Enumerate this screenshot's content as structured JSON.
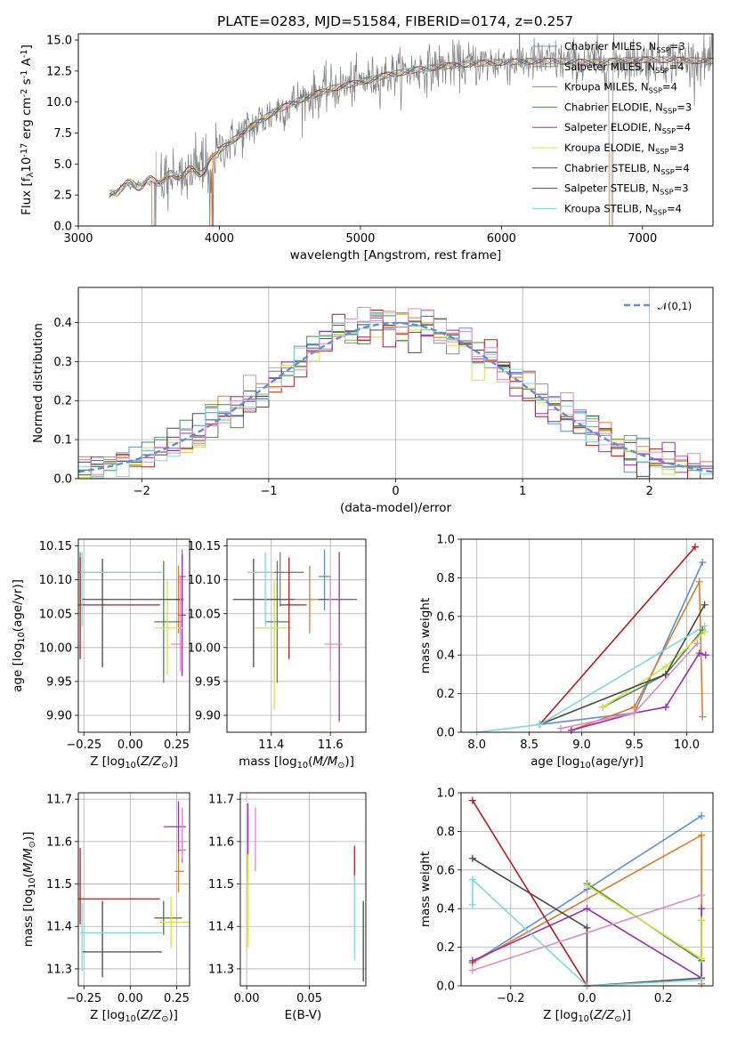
{
  "figure_title": "PLATE=0283, MJD=51584, FIBERID=0174, z=0.257",
  "chart_data": [
    {
      "type": "line",
      "panel": "spectrum",
      "xlabel": "wavelength [Angstrom, rest frame]",
      "ylabel": "Flux [f$_\\lambda$10$^{-17}$ erg cm$^{-2}$ s$^{-1}$ A$^{-1}$]",
      "xlim": [
        3000,
        7500
      ],
      "ylim": [
        0,
        15.5
      ],
      "xticks": [
        "3000",
        "4000",
        "5000",
        "6000",
        "7000"
      ],
      "yticks": [
        "0.0",
        "2.5",
        "5.0",
        "7.5",
        "10.0",
        "12.5",
        "15.0"
      ],
      "data_wavelength_range": [
        3220,
        7500
      ],
      "continuum_x": [
        3220,
        3300,
        3500,
        3700,
        3900,
        4000,
        4200,
        4400,
        4600,
        4800,
        5000,
        5200,
        5400,
        5600,
        5800,
        6000,
        6200,
        6400,
        6600,
        6800,
        7000,
        7200,
        7500
      ],
      "continuum_y": [
        2.3,
        3.2,
        3.5,
        4.1,
        4.6,
        6.1,
        7.8,
        9.3,
        10.3,
        11.1,
        11.6,
        12.2,
        12.6,
        12.9,
        13.1,
        13.2,
        13.3,
        13.3,
        13.2,
        13.3,
        13.4,
        13.4,
        13.3
      ],
      "legend": [
        {
          "label": "Chabrier MILES, N$_{SSP}$=3",
          "color": "#5b8fd9"
        },
        {
          "label": "Salpeter MILES, N$_{SSP}$=4",
          "color": "#808080"
        },
        {
          "label": "Kroupa MILES, N$_{SSP}$=4",
          "color": "#e07b28"
        },
        {
          "label": "Chabrier ELODIE, N$_{SSP}$=3",
          "color": "#4a8a4a"
        },
        {
          "label": "Salpeter ELODIE, N$_{SSP}$=4",
          "color": "#9a2fb5"
        },
        {
          "label": "Kroupa ELODIE, N$_{SSP}$=3",
          "color": "#d8e040"
        },
        {
          "label": "Chabrier STELIB, N$_{SSP}$=4",
          "color": "#4a4a4a"
        },
        {
          "label": "Salpeter STELIB, N$_{SSP}$=3",
          "color": "#b51e1e"
        },
        {
          "label": "Kroupa STELIB, N$_{SSP}$=4",
          "color": "#7fd8e0"
        }
      ],
      "legend_placement": "right"
    },
    {
      "type": "step-histogram",
      "panel": "residuals",
      "xlabel": "(data-model)/error",
      "ylabel": "Normed distribution",
      "xlim": [
        -2.5,
        2.5
      ],
      "ylim": [
        0,
        0.49
      ],
      "xticks": [
        "−2",
        "−1",
        "0",
        "1",
        "2"
      ],
      "yticks": [
        "0.0",
        "0.1",
        "0.2",
        "0.3",
        "0.4"
      ],
      "bin_width": 0.1,
      "reference_curve": {
        "label": "$\\mathcal{N}(0,1)$",
        "color": "#5b8fd9",
        "style": "dashed"
      },
      "grid": true,
      "legend_placement": "top-right"
    },
    {
      "type": "errorbar",
      "panel": "age-vs-Z",
      "xlabel": "Z [log$_{10}$($Z/Z_\\odot$)]",
      "ylabel": "age  [log$_{10}$($age/yr$)]",
      "xlim": [
        -0.28,
        0.32
      ],
      "ylim": [
        9.875,
        10.16
      ],
      "xticks": [
        "−0.25",
        "0.00",
        "0.25"
      ],
      "yticks": [
        "9.90",
        "9.95",
        "10.00",
        "10.05",
        "10.10",
        "10.15"
      ],
      "points": [
        {
          "x": 0.28,
          "y": 10.105,
          "xerr": [
            0.02,
            0.02
          ],
          "yerr": [
            0.05,
            0.04
          ],
          "color": "#5b8fd9"
        },
        {
          "x": -0.27,
          "y": 10.111,
          "xerr": [
            0.01,
            0.26
          ],
          "yerr": [
            0.05,
            0.03
          ],
          "color": "#808080"
        },
        {
          "x": 0.26,
          "y": 10.071,
          "xerr": [
            0.02,
            0.03
          ],
          "yerr": [
            0.05,
            0.05
          ],
          "color": "#e07b28"
        },
        {
          "x": 0.18,
          "y": 10.038,
          "xerr": [
            0.05,
            0.1
          ],
          "yerr": [
            0.09,
            0.09
          ],
          "color": "#4a8a4a"
        },
        {
          "x": 0.28,
          "y": 10.048,
          "xerr": [
            0.02,
            0.02
          ],
          "yerr": [
            0.09,
            0.09
          ],
          "color": "#9a2fb5"
        },
        {
          "x": 0.2,
          "y": 10.029,
          "xerr": [
            0.07,
            0.09
          ],
          "yerr": [
            0.07,
            0.07
          ],
          "color": "#d8e040"
        },
        {
          "x": -0.15,
          "y": 10.071,
          "xerr": [
            0.11,
            0.43
          ],
          "yerr": [
            0.1,
            0.06
          ],
          "color": "#4a4a4a"
        },
        {
          "x": -0.27,
          "y": 10.063,
          "xerr": [
            0.01,
            0.43
          ],
          "yerr": [
            0.08,
            0.07
          ],
          "color": "#b51e1e"
        },
        {
          "x": -0.26,
          "y": 10.111,
          "xerr": [
            0.01,
            0.43
          ],
          "yerr": [
            0.08,
            0.03
          ],
          "color": "#7fd8e0"
        },
        {
          "x": 0.27,
          "y": 10.005,
          "xerr": [
            0.05,
            0.02
          ],
          "yerr": [
            0.04,
            0.1
          ],
          "color": "#e58ac0"
        }
      ],
      "grid": true
    },
    {
      "type": "errorbar",
      "panel": "age-vs-mass",
      "xlabel": "mass [log$_{10}$($M/M_\\odot$)]",
      "ylabel": "",
      "xlim": [
        11.25,
        11.72
      ],
      "ylim": [
        9.875,
        10.16
      ],
      "xticks": [
        "11.4",
        "11.6"
      ],
      "yticks": [
        "9.90",
        "9.95",
        "10.00",
        "10.05",
        "10.10",
        "10.15"
      ],
      "points": [
        {
          "x": 11.58,
          "y": 10.105,
          "xerr": [
            0.02,
            0.02
          ],
          "yerr": [
            0.05,
            0.04
          ],
          "color": "#5b8fd9"
        },
        {
          "x": 11.43,
          "y": 10.111,
          "xerr": [
            0.08,
            0.08
          ],
          "yerr": [
            0.05,
            0.03
          ],
          "color": "#808080"
        },
        {
          "x": 11.53,
          "y": 10.071,
          "xerr": [
            0.05,
            0.05
          ],
          "yerr": [
            0.05,
            0.05
          ],
          "color": "#e07b28"
        },
        {
          "x": 11.42,
          "y": 10.038,
          "xerr": [
            0.04,
            0.04
          ],
          "yerr": [
            0.09,
            0.09
          ],
          "color": "#4a8a4a"
        },
        {
          "x": 11.63,
          "y": 10.071,
          "xerr": [
            0.07,
            0.06
          ],
          "yerr": [
            0.18,
            0.07
          ],
          "color": "#9a2fb5"
        },
        {
          "x": 11.41,
          "y": 10.029,
          "xerr": [
            0.07,
            0.06
          ],
          "yerr": [
            0.12,
            0.07
          ],
          "color": "#d8e040"
        },
        {
          "x": 11.34,
          "y": 10.071,
          "xerr": [
            0.07,
            0.14
          ],
          "yerr": [
            0.1,
            0.06
          ],
          "color": "#4a4a4a"
        },
        {
          "x": 11.46,
          "y": 10.063,
          "xerr": [
            0.03,
            0.06
          ],
          "yerr": [
            0.08,
            0.07
          ],
          "color": "#b51e1e"
        },
        {
          "x": 11.38,
          "y": 10.111,
          "xerr": [
            0.06,
            0.03
          ],
          "yerr": [
            0.08,
            0.03
          ],
          "color": "#7fd8e0"
        },
        {
          "x": 11.6,
          "y": 10.005,
          "xerr": [
            0.02,
            0.04
          ],
          "yerr": [
            0.04,
            0.1
          ],
          "color": "#e58ac0"
        }
      ],
      "grid": true
    },
    {
      "type": "line",
      "panel": "mass-weight-vs-age",
      "xlabel": "age  [log$_{10}$($age/yr$)]",
      "ylabel": "mass weight",
      "xlim": [
        7.85,
        10.25
      ],
      "ylim": [
        0,
        1.0
      ],
      "xticks": [
        "8.0",
        "8.5",
        "9.0",
        "9.5",
        "10.0"
      ],
      "yticks": [
        "0.0",
        "0.2",
        "0.4",
        "0.6",
        "0.8",
        "1.0"
      ],
      "series": [
        {
          "color": "#5b8fd9",
          "x": [
            8.6,
            9.5,
            10.15
          ],
          "y": [
            0.04,
            0.1,
            0.88
          ]
        },
        {
          "color": "#e07b28",
          "x": [
            8.9,
            9.5,
            10.12,
            10.15
          ],
          "y": [
            0.01,
            0.13,
            0.78,
            0.08
          ]
        },
        {
          "color": "#4a8a4a",
          "x": [
            9.2,
            9.8,
            10.15
          ],
          "y": [
            0.13,
            0.3,
            0.53
          ]
        },
        {
          "color": "#9a2fb5",
          "x": [
            8.9,
            9.5,
            9.8,
            10.12,
            10.18
          ],
          "y": [
            0.01,
            0.1,
            0.13,
            0.41,
            0.4
          ]
        },
        {
          "color": "#d8e040",
          "x": [
            9.2,
            9.8,
            10.17
          ],
          "y": [
            0.13,
            0.34,
            0.52
          ]
        },
        {
          "color": "#4a4a4a",
          "x": [
            8.6,
            9.8,
            10.17
          ],
          "y": [
            0.04,
            0.3,
            0.66
          ]
        },
        {
          "color": "#b51e1e",
          "x": [
            8.6,
            10.08
          ],
          "y": [
            0.04,
            0.96
          ]
        },
        {
          "color": "#7fd8e0",
          "x": [
            8.0,
            8.6,
            10.17
          ],
          "y": [
            0.0,
            0.04,
            0.55
          ]
        },
        {
          "color": "#e58ac0",
          "x": [
            8.8,
            9.5,
            10.1
          ],
          "y": [
            0.02,
            0.1,
            0.46
          ]
        }
      ],
      "grid": true
    },
    {
      "type": "errorbar",
      "panel": "mass-vs-Z",
      "xlabel": "Z [log$_{10}$($Z/Z_\\odot$)]",
      "ylabel": "mass [log$_{10}$($M/M_\\odot$)]",
      "xlim": [
        -0.28,
        0.32
      ],
      "ylim": [
        11.26,
        11.715
      ],
      "xticks": [
        "−0.25",
        "0.00",
        "0.25"
      ],
      "yticks": [
        "11.3",
        "11.4",
        "11.5",
        "11.6",
        "11.7"
      ],
      "points": [
        {
          "x": 0.28,
          "y": 11.58,
          "xerr": [
            0.02,
            0.02
          ],
          "yerr": [
            0.03,
            0.03
          ],
          "color": "#5b8fd9"
        },
        {
          "x": 0.18,
          "y": 11.42,
          "xerr": [
            0.04,
            0.09
          ],
          "yerr": [
            0.04,
            0.04
          ],
          "color": "#808080"
        },
        {
          "x": 0.26,
          "y": 11.53,
          "xerr": [
            0.02,
            0.03
          ],
          "yerr": [
            0.05,
            0.05
          ],
          "color": "#e07b28"
        },
        {
          "x": 0.18,
          "y": 11.42,
          "xerr": [
            0.05,
            0.1
          ],
          "yerr": [
            0.04,
            0.04
          ],
          "color": "#4a8a4a"
        },
        {
          "x": 0.26,
          "y": 11.635,
          "xerr": [
            0.08,
            0.04
          ],
          "yerr": [
            0.06,
            0.06
          ],
          "color": "#9a2fb5"
        },
        {
          "x": 0.22,
          "y": 11.41,
          "xerr": [
            0.06,
            0.1
          ],
          "yerr": [
            0.06,
            0.06
          ],
          "color": "#d8e040"
        },
        {
          "x": -0.15,
          "y": 11.34,
          "xerr": [
            0.11,
            0.32
          ],
          "yerr": [
            0.06,
            0.12
          ],
          "color": "#4a4a4a"
        },
        {
          "x": -0.27,
          "y": 11.465,
          "xerr": [
            0.01,
            0.43
          ],
          "yerr": [
            0.06,
            0.12
          ],
          "color": "#b51e1e"
        },
        {
          "x": -0.26,
          "y": 11.385,
          "xerr": [
            0.01,
            0.43
          ],
          "yerr": [
            0.09,
            0.07
          ],
          "color": "#7fd8e0"
        },
        {
          "x": 0.28,
          "y": 11.6,
          "xerr": [
            0.02,
            0.02
          ],
          "yerr": [
            0.04,
            0.08
          ],
          "color": "#e58ac0"
        }
      ],
      "grid": true
    },
    {
      "type": "errorbar",
      "panel": "mass-vs-EBV",
      "xlabel": "E(B-V)",
      "ylabel": "",
      "xlim": [
        -0.005,
        0.095
      ],
      "ylim": [
        11.26,
        11.715
      ],
      "xticks": [
        "0.00",
        "0.05"
      ],
      "yticks": [
        "11.3",
        "11.4",
        "11.5",
        "11.6",
        "11.7"
      ],
      "points": [
        {
          "x": 0.001,
          "y": 11.6,
          "yerr": [
            0.09,
            0.09
          ],
          "color": "#9a2fb5"
        },
        {
          "x": 0.001,
          "y": 11.47,
          "yerr": [
            0.12,
            0.1
          ],
          "color": "#d8e040"
        },
        {
          "x": 0.007,
          "y": 11.58,
          "yerr": [
            0.05,
            0.1
          ],
          "color": "#e58ac0"
        },
        {
          "x": 0.086,
          "y": 11.55,
          "yerr": [
            0.04,
            0.04
          ],
          "color": "#b51e1e"
        },
        {
          "x": 0.086,
          "y": 11.42,
          "yerr": [
            0.1,
            0.1
          ],
          "color": "#7fd8e0"
        },
        {
          "x": 0.093,
          "y": 11.37,
          "yerr": [
            0.1,
            0.09
          ],
          "color": "#4a4a4a"
        }
      ],
      "grid": true
    },
    {
      "type": "line",
      "panel": "mass-weight-vs-Z",
      "xlabel": "Z [log$_{10}$($Z/Z_\\odot$)]",
      "ylabel": "mass weight",
      "xlim": [
        -0.33,
        0.33
      ],
      "ylim": [
        0,
        1.0
      ],
      "xticks": [
        "−0.2",
        "0.0",
        "0.2"
      ],
      "yticks": [
        "0.0",
        "0.2",
        "0.4",
        "0.6",
        "0.8",
        "1.0"
      ],
      "series": [
        {
          "color": "#5b8fd9",
          "x": [
            -0.3,
            0.0,
            0.3
          ],
          "y": [
            0.12,
            0.5,
            0.88
          ]
        },
        {
          "color": "#e07b28",
          "x": [
            -0.3,
            0.3,
            0.3
          ],
          "y": [
            0.12,
            0.78,
            0.01
          ]
        },
        {
          "color": "#4a8a4a",
          "x": [
            0.0,
            0.3,
            0.3
          ],
          "y": [
            0.53,
            0.13,
            0.34
          ]
        },
        {
          "color": "#9a2fb5",
          "x": [
            -0.3,
            0.0,
            0.3,
            0.3
          ],
          "y": [
            0.13,
            0.4,
            0.04,
            0.4
          ]
        },
        {
          "color": "#d8e040",
          "x": [
            0.0,
            0.3,
            0.3
          ],
          "y": [
            0.52,
            0.14,
            0.34
          ]
        },
        {
          "color": "#4a4a4a",
          "x": [
            -0.3,
            0.0,
            0.0,
            0.3
          ],
          "y": [
            0.66,
            0.3,
            0.0,
            0.04
          ]
        },
        {
          "color": "#b51e1e",
          "x": [
            -0.3,
            0.0
          ],
          "y": [
            0.96,
            0.0
          ]
        },
        {
          "color": "#7fd8e0",
          "x": [
            -0.3,
            -0.3,
            0.0,
            0.3
          ],
          "y": [
            0.42,
            0.55,
            0.0,
            0.03
          ]
        },
        {
          "color": "#e58ac0",
          "x": [
            -0.3,
            0.3
          ],
          "y": [
            0.08,
            0.47
          ]
        }
      ],
      "grid": true
    }
  ]
}
